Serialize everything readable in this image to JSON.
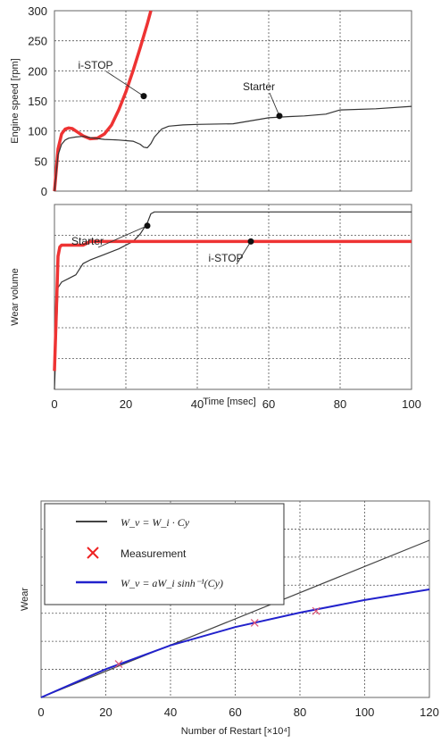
{
  "chart_data": [
    {
      "type": "line",
      "xlim": [
        0,
        100
      ],
      "ylim": [
        0,
        300
      ],
      "yticks": [
        0,
        50,
        100,
        150,
        200,
        250,
        300
      ],
      "ylabel": "Engine speed [rpm]",
      "grid": true,
      "series": [
        {
          "name": "i-STOP",
          "color": "#ee3333",
          "x": [
            0,
            1,
            2,
            3,
            4,
            5,
            6,
            8,
            10,
            12,
            14,
            16,
            18,
            20,
            22,
            24,
            26,
            27
          ],
          "y": [
            0,
            70,
            95,
            103,
            105,
            104,
            100,
            92,
            87,
            88,
            95,
            110,
            135,
            165,
            200,
            238,
            278,
            300
          ]
        },
        {
          "name": "Starter",
          "color": "#333333",
          "x": [
            0,
            1,
            2,
            3,
            4,
            6,
            8,
            10,
            14,
            18,
            22,
            24,
            25,
            26,
            27,
            28,
            30,
            32,
            36,
            40,
            50,
            60,
            66,
            70,
            76,
            80,
            90,
            100
          ],
          "y": [
            0,
            60,
            78,
            85,
            88,
            90,
            91,
            89,
            86,
            85,
            83,
            78,
            73,
            72,
            79,
            90,
            103,
            108,
            110,
            111,
            112,
            122,
            124,
            125,
            128,
            135,
            137,
            141
          ]
        }
      ],
      "annotations": [
        {
          "text": "i-STOP",
          "point": [
            25,
            158
          ]
        },
        {
          "text": "Starter",
          "point": [
            63,
            125
          ]
        }
      ]
    },
    {
      "type": "line",
      "xlim": [
        0,
        100
      ],
      "ylim": [
        0,
        1
      ],
      "xticks": [
        0,
        20,
        40,
        60,
        80,
        100
      ],
      "xlabel": "Time [msec]",
      "ylabel": "Wear volume",
      "grid": true,
      "series": [
        {
          "name": "Starter",
          "color": "#333333",
          "x": [
            0,
            1,
            2,
            4,
            6,
            8,
            10,
            14,
            18,
            22,
            24,
            26,
            27,
            28,
            40,
            60,
            80,
            100
          ],
          "y": [
            0,
            0.55,
            0.58,
            0.6,
            0.62,
            0.68,
            0.7,
            0.73,
            0.76,
            0.8,
            0.84,
            0.9,
            0.95,
            0.96,
            0.96,
            0.96,
            0.96,
            0.96
          ]
        },
        {
          "name": "i-STOP",
          "color": "#ee3333",
          "x": [
            0,
            0.5,
            1,
            1.5,
            2,
            4,
            6,
            8,
            9,
            10,
            12,
            20,
            40,
            60,
            80,
            100
          ],
          "y": [
            0.1,
            0.4,
            0.72,
            0.77,
            0.78,
            0.78,
            0.78,
            0.78,
            0.79,
            0.8,
            0.8,
            0.8,
            0.8,
            0.8,
            0.8,
            0.8
          ]
        }
      ],
      "annotations": [
        {
          "text": "Starter",
          "point": [
            26,
            0.885
          ]
        },
        {
          "text": "i-STOP",
          "point": [
            55,
            0.8
          ]
        }
      ]
    },
    {
      "type": "line",
      "xlim": [
        0,
        120
      ],
      "ylim": [
        0,
        1
      ],
      "xticks": [
        0,
        20,
        40,
        60,
        80,
        100,
        120
      ],
      "xlabel": "Number of Restart [×10⁴]",
      "ylabel": "Wear",
      "grid": true,
      "legend": "top-left",
      "series": [
        {
          "name": "W_v = W_i · Cy",
          "color": "#444444",
          "x": [
            0,
            120
          ],
          "y": [
            0,
            0.8
          ]
        },
        {
          "name": "W_v = aW_i sinh⁻¹(Cy)",
          "color": "#2222cc",
          "x": [
            0,
            20,
            40,
            60,
            80,
            100,
            120
          ],
          "y": [
            0,
            0.144,
            0.265,
            0.358,
            0.432,
            0.496,
            0.55
          ]
        },
        {
          "name": "Measurement",
          "type": "scatter",
          "color": "#dd5577",
          "x": [
            24,
            66,
            85
          ],
          "y": [
            0.17,
            0.38,
            0.44
          ]
        }
      ]
    }
  ]
}
